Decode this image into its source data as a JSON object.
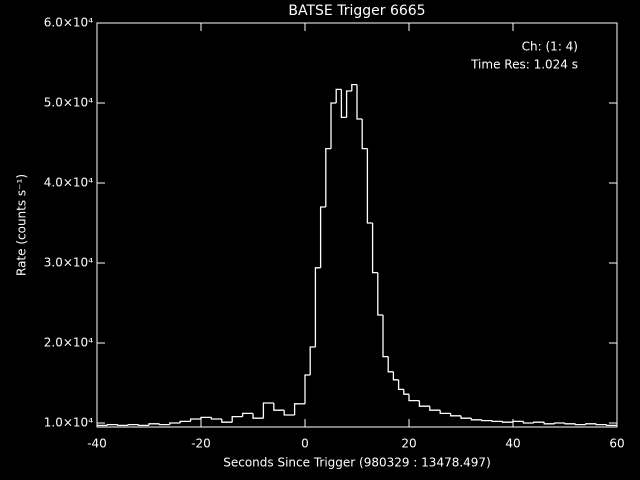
{
  "chart_data": {
    "type": "histogram",
    "title": "BATSE Trigger 6665",
    "annotations": [
      "Ch: (1: 4)",
      "Time Res: 1.024 s"
    ],
    "x_label": "Seconds Since Trigger (980329 : 13478.497)",
    "y_label": "Rate (counts s⁻¹)",
    "color": "#ffffff",
    "bins": [
      -40,
      -38,
      -36,
      -34,
      -32,
      -30,
      -28,
      -26,
      -24,
      -22,
      -20,
      -18,
      -16,
      -14,
      -12,
      -10,
      -8,
      -6,
      -4,
      -2,
      -1,
      0,
      1,
      2,
      3,
      4,
      5,
      6,
      7,
      8,
      9,
      10,
      11,
      12,
      13,
      14,
      15,
      16,
      17,
      18,
      19,
      20,
      22,
      24,
      26,
      28,
      30,
      32,
      34,
      36,
      38,
      40,
      42,
      44,
      46,
      48,
      50,
      52,
      54,
      56,
      58,
      60
    ],
    "values": [
      9700,
      9800,
      9700,
      9800,
      9700,
      9900,
      9800,
      10000,
      10200,
      10500,
      10700,
      10500,
      10100,
      10800,
      11200,
      10600,
      12500,
      11600,
      11000,
      12400,
      12400,
      16000,
      19500,
      29400,
      37000,
      44300,
      50000,
      51700,
      48200,
      51500,
      52300,
      48000,
      44300,
      35000,
      28800,
      23500,
      18300,
      16400,
      15400,
      14200,
      13600,
      12800,
      12100,
      11600,
      11200,
      10900,
      10600,
      10400,
      10300,
      10200,
      10100,
      10200,
      10000,
      10100,
      9900,
      10000,
      9900,
      9800,
      9900,
      9800,
      9700
    ],
    "xlim": [
      -40,
      60
    ],
    "xticks": [
      -40,
      -20,
      0,
      20,
      40,
      60
    ],
    "ylim": [
      9500,
      60000
    ],
    "yticks": [
      {
        "value": 10000,
        "label": "1.0×10⁴"
      },
      {
        "value": 20000,
        "label": "2.0×10⁴"
      },
      {
        "value": 30000,
        "label": "3.0×10⁴"
      },
      {
        "value": 40000,
        "label": "4.0×10⁴"
      },
      {
        "value": 50000,
        "label": "5.0×10⁴"
      },
      {
        "value": 60000,
        "label": "6.0×10⁴"
      }
    ]
  }
}
